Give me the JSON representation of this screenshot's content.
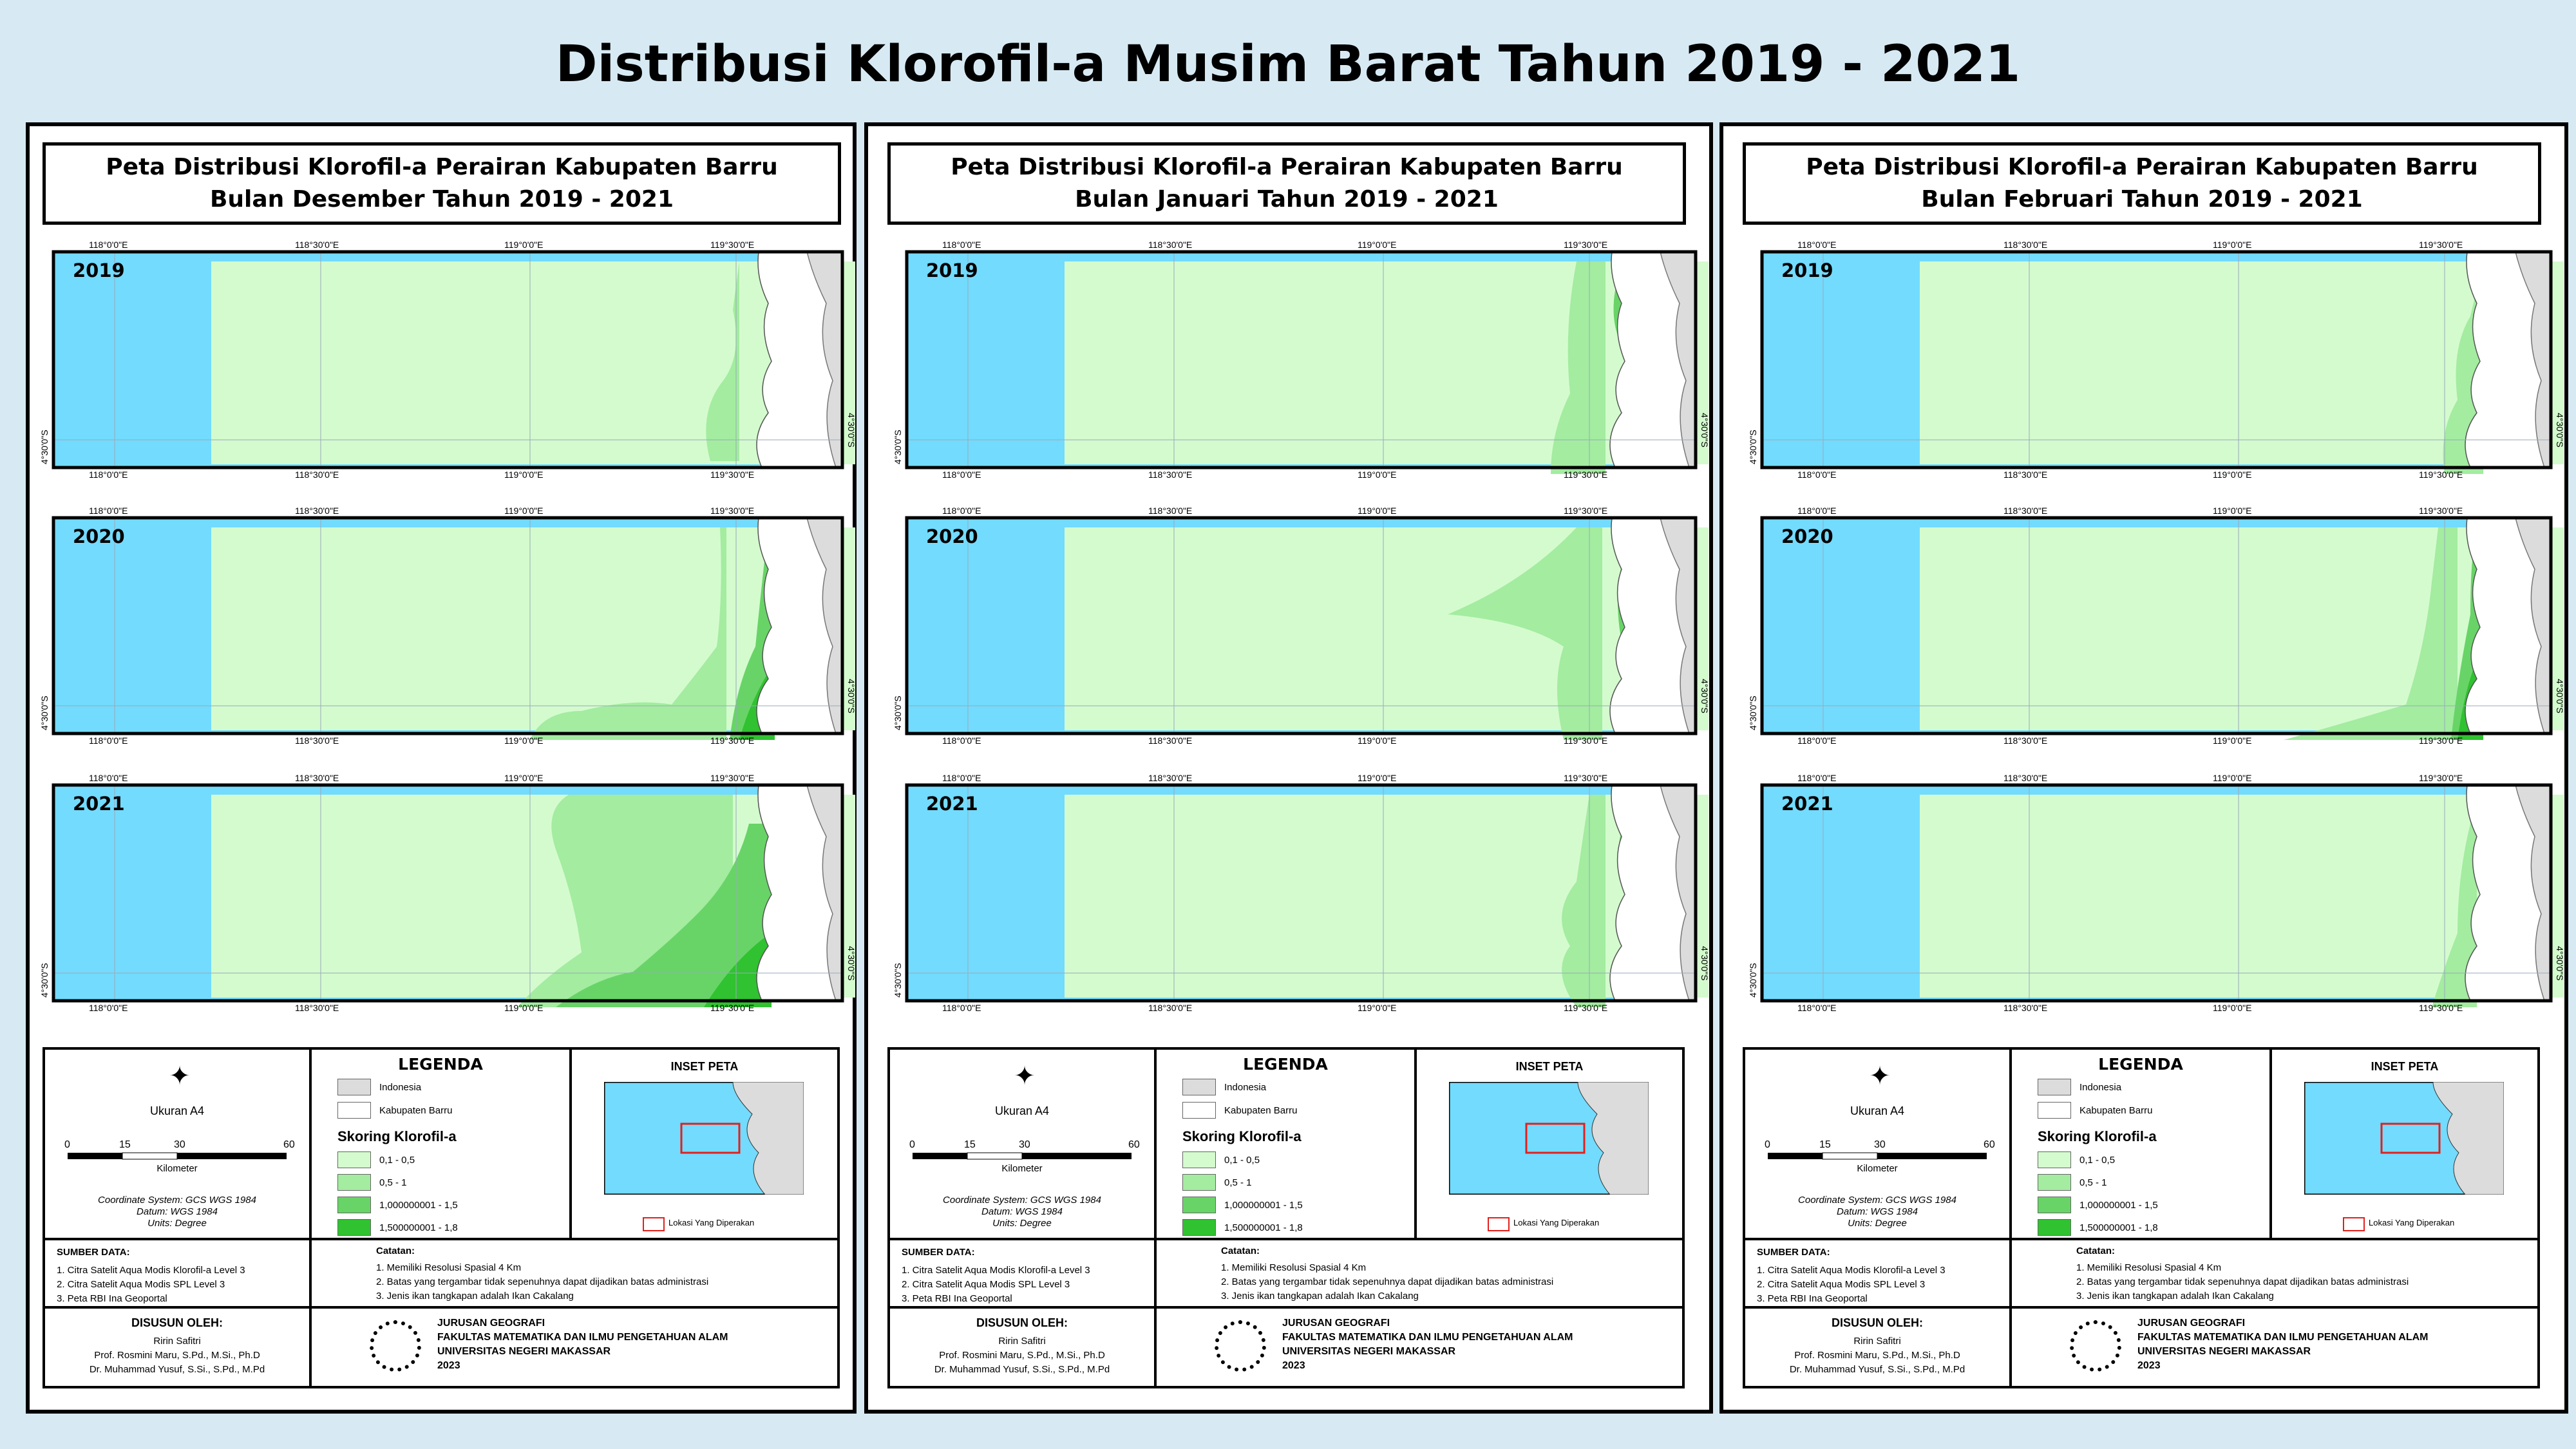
{
  "main_title": "Distribusi Klorofil-a Musim Barat Tahun 2019 - 2021",
  "colors": {
    "sea": "#73dbfe",
    "class_1": "#d4fbce",
    "class_2": "#a3eca0",
    "class_3": "#68d467",
    "class_4": "#30c230",
    "indonesia": "#dcdcdc",
    "kabupaten_barru": "#ffffff",
    "inset_marker": "#e1201c"
  },
  "sheets": [
    {
      "title_line1": "Peta Distribusi Klorofil-a Perairan Kabupaten Barru",
      "title_line2": "Bulan Desember Tahun 2019 - 2021",
      "maps": [
        {
          "year": "2019",
          "top_ticks": [
            "118°0'0\"E",
            "118°30'0\"E",
            "119°0'0\"E",
            "119°30'0\"E"
          ],
          "bottom_ticks": [
            "118°0'0\"E",
            "118°30'0\"E",
            "119°0'0\"E",
            "119°30'0\"E"
          ]
        },
        {
          "year": "2020",
          "top_ticks": [
            "118°0'0\"E",
            "118°30'0\"E",
            "119°0'0\"E",
            "119°30'0\"E"
          ],
          "bottom_ticks": [
            "118°0'0\"E",
            "118°30'0\"E",
            "119°0'0\"E",
            "119°30'0\"E"
          ]
        },
        {
          "year": "2021",
          "top_ticks": [
            "118°0'0\"E",
            "118°30'0\"E",
            "119°0'0\"E",
            "119°30'0\"E"
          ],
          "bottom_ticks": [
            "118°0'0\"E",
            "118°30'0\"E",
            "119°0'0\"E",
            "119°30'0\"E"
          ]
        }
      ]
    },
    {
      "title_line1": "Peta Distribusi Klorofil-a Perairan Kabupaten Barru",
      "title_line2": "Bulan Januari Tahun 2019 - 2021",
      "maps": [
        {
          "year": "2019",
          "top_ticks": [
            "118°0'0\"E",
            "118°30'0\"E",
            "119°0'0\"E",
            "119°30'0\"E"
          ],
          "bottom_ticks": [
            "118°0'0\"E",
            "118°30'0\"E",
            "119°0'0\"E",
            "119°30'0\"E"
          ]
        },
        {
          "year": "2020",
          "top_ticks": [
            "118°0'0\"E",
            "118°30'0\"E",
            "119°0'0\"E",
            "119°30'0\"E"
          ],
          "bottom_ticks": [
            "118°0'0\"E",
            "118°30'0\"E",
            "119°0'0\"E",
            "119°30'0\"E"
          ]
        },
        {
          "year": "2021",
          "top_ticks": [
            "118°0'0\"E",
            "118°30'0\"E",
            "119°0'0\"E",
            "119°30'0\"E"
          ],
          "bottom_ticks": [
            "118°0'0\"E",
            "118°30'0\"E",
            "119°0'0\"E",
            "119°30'0\"E"
          ]
        }
      ]
    },
    {
      "title_line1": "Peta Distribusi Klorofil-a Perairan Kabupaten Barru",
      "title_line2": "Bulan Februari Tahun 2019 - 2021",
      "maps": [
        {
          "year": "2019",
          "top_ticks": [
            "118°0'0\"E",
            "118°30'0\"E",
            "119°0'0\"E",
            "119°30'0\"E"
          ],
          "bottom_ticks": [
            "118°0'0\"E",
            "118°30'0\"E",
            "119°0'0\"E",
            "119°30'0\"E"
          ]
        },
        {
          "year": "2020",
          "top_ticks": [
            "118°0'0\"E",
            "118°30'0\"E",
            "119°0'0\"E",
            "119°30'0\"E"
          ],
          "bottom_ticks": [
            "118°0'0\"E",
            "118°30'0\"E",
            "119°0'0\"E",
            "119°30'0\"E"
          ]
        },
        {
          "year": "2021",
          "top_ticks": [
            "118°0'0\"E",
            "118°30'0\"E",
            "119°0'0\"E",
            "119°30'0\"E"
          ],
          "bottom_ticks": [
            "118°0'0\"E",
            "118°30'0\"E",
            "119°0'0\"E",
            "119°30'0\"E"
          ]
        }
      ]
    }
  ],
  "lat_label": "4°30'0\"S",
  "scale": {
    "size": "Ukuran A4",
    "ticks": [
      "0",
      "15",
      "30",
      "60"
    ],
    "unit": "Kilometer"
  },
  "coordinate": {
    "system": "Coordinate System: GCS WGS 1984",
    "datum": "Datum: WGS 1984",
    "units": "Units: Degree"
  },
  "legend": {
    "title": "LEGENDA",
    "items": [
      "Indonesia",
      "Kabupaten Barru"
    ],
    "skoring_title": "Skoring Klorofil-a",
    "classes": [
      "0,1 - 0,5",
      "0,5 - 1",
      "1,000000001 - 1,5",
      "1,500000001 - 1,8"
    ]
  },
  "inset": {
    "title": "INSET PETA",
    "marker_label": "Lokasi Yang Diperakan"
  },
  "sumber": {
    "title": "SUMBER DATA:",
    "items": [
      "1. Citra Satelit Aqua Modis Klorofil-a Level 3",
      "2. Citra Satelit Aqua Modis SPL Level 3",
      "3. Peta RBI Ina Geoportal"
    ]
  },
  "catatan": {
    "title": "Catatan:",
    "items": [
      "1. Memiliki Resolusi Spasial 4 Km",
      "2. Batas yang tergambar tidak sepenuhnya dapat dijadikan batas administrasi",
      "3. Jenis ikan tangkapan adalah Ikan Cakalang"
    ]
  },
  "disusun": {
    "title": "DISUSUN OLEH:",
    "names": [
      "Ririn Safitri",
      "Prof. Rosmini Maru, S.Pd., M.Si., Ph.D",
      "Dr. Muhammad Yusuf, S.Si., S.Pd., M.Pd"
    ]
  },
  "institution": {
    "lines": [
      "JURUSAN GEOGRAFI",
      "FAKULTAS MATEMATIKA DAN ILMU PENGETAHUAN ALAM",
      "UNIVERSITAS NEGERI MAKASSAR",
      "2023"
    ]
  }
}
